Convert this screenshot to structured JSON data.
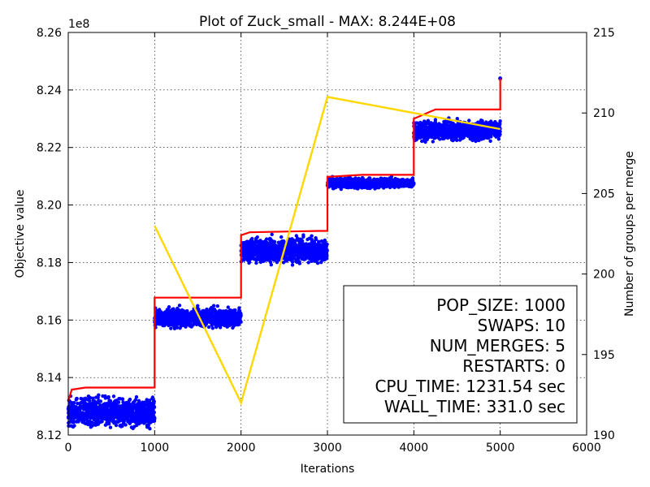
{
  "chart_data": {
    "type": "scatter",
    "title": "Plot of Zuck_small - MAX: 8.244E+08",
    "xlabel": "Iterations",
    "ylabel": "Objective value",
    "y2label": "Number of groups per merge",
    "y_offset_label": "1e8",
    "xlim": [
      0,
      6000
    ],
    "ylim": [
      8.12,
      8.26
    ],
    "y2lim": [
      190,
      215
    ],
    "x_ticks": [
      "0",
      "1000",
      "2000",
      "3000",
      "4000",
      "5000",
      "6000"
    ],
    "y_ticks": [
      "8.12",
      "8.14",
      "8.16",
      "8.18",
      "8.20",
      "8.22",
      "8.24",
      "8.26"
    ],
    "y2_ticks": [
      "190",
      "195",
      "200",
      "205",
      "210",
      "215"
    ],
    "grid": true,
    "scatter_series": {
      "color": "#0000ff",
      "point_count": 5000,
      "segments": [
        {
          "x_range": [
            0,
            1000
          ],
          "y_range": [
            8.1212,
            8.1347
          ]
        },
        {
          "x_range": [
            1000,
            2000
          ],
          "y_range": [
            8.1565,
            8.1652
          ]
        },
        {
          "x_range": [
            2000,
            3000
          ],
          "y_range": [
            8.1785,
            8.1898
          ]
        },
        {
          "x_range": [
            3000,
            4000
          ],
          "y_range": [
            8.2053,
            8.2099
          ]
        },
        {
          "x_range": [
            4000,
            5000
          ],
          "y_range": [
            8.2213,
            8.2305
          ]
        }
      ],
      "max_point": [
        5000,
        8.244
      ]
    },
    "best_series": {
      "color": "#ff0000",
      "points": [
        [
          0,
          8.1318
        ],
        [
          40,
          8.1358
        ],
        [
          200,
          8.1365
        ],
        [
          1000,
          8.1365
        ],
        [
          1000,
          8.1678
        ],
        [
          2000,
          8.1678
        ],
        [
          2000,
          8.1895
        ],
        [
          2100,
          8.1905
        ],
        [
          2900,
          8.191
        ],
        [
          3000,
          8.191
        ],
        [
          3000,
          8.2098
        ],
        [
          3400,
          8.2105
        ],
        [
          4000,
          8.2105
        ],
        [
          4000,
          8.23
        ],
        [
          4250,
          8.2332
        ],
        [
          5000,
          8.2332
        ],
        [
          5000,
          8.244
        ]
      ]
    },
    "groups_series": {
      "color": "#ffd700",
      "x": [
        1000,
        2000,
        3000,
        5000
      ],
      "y": [
        203,
        192,
        211,
        209
      ]
    }
  },
  "info_box": {
    "lines": [
      "POP_SIZE: 1000",
      "SWAPS: 10",
      "NUM_MERGES: 5",
      "RESTARTS: 0",
      "CPU_TIME: 1231.54 sec",
      "WALL_TIME: 331.0 sec"
    ]
  }
}
